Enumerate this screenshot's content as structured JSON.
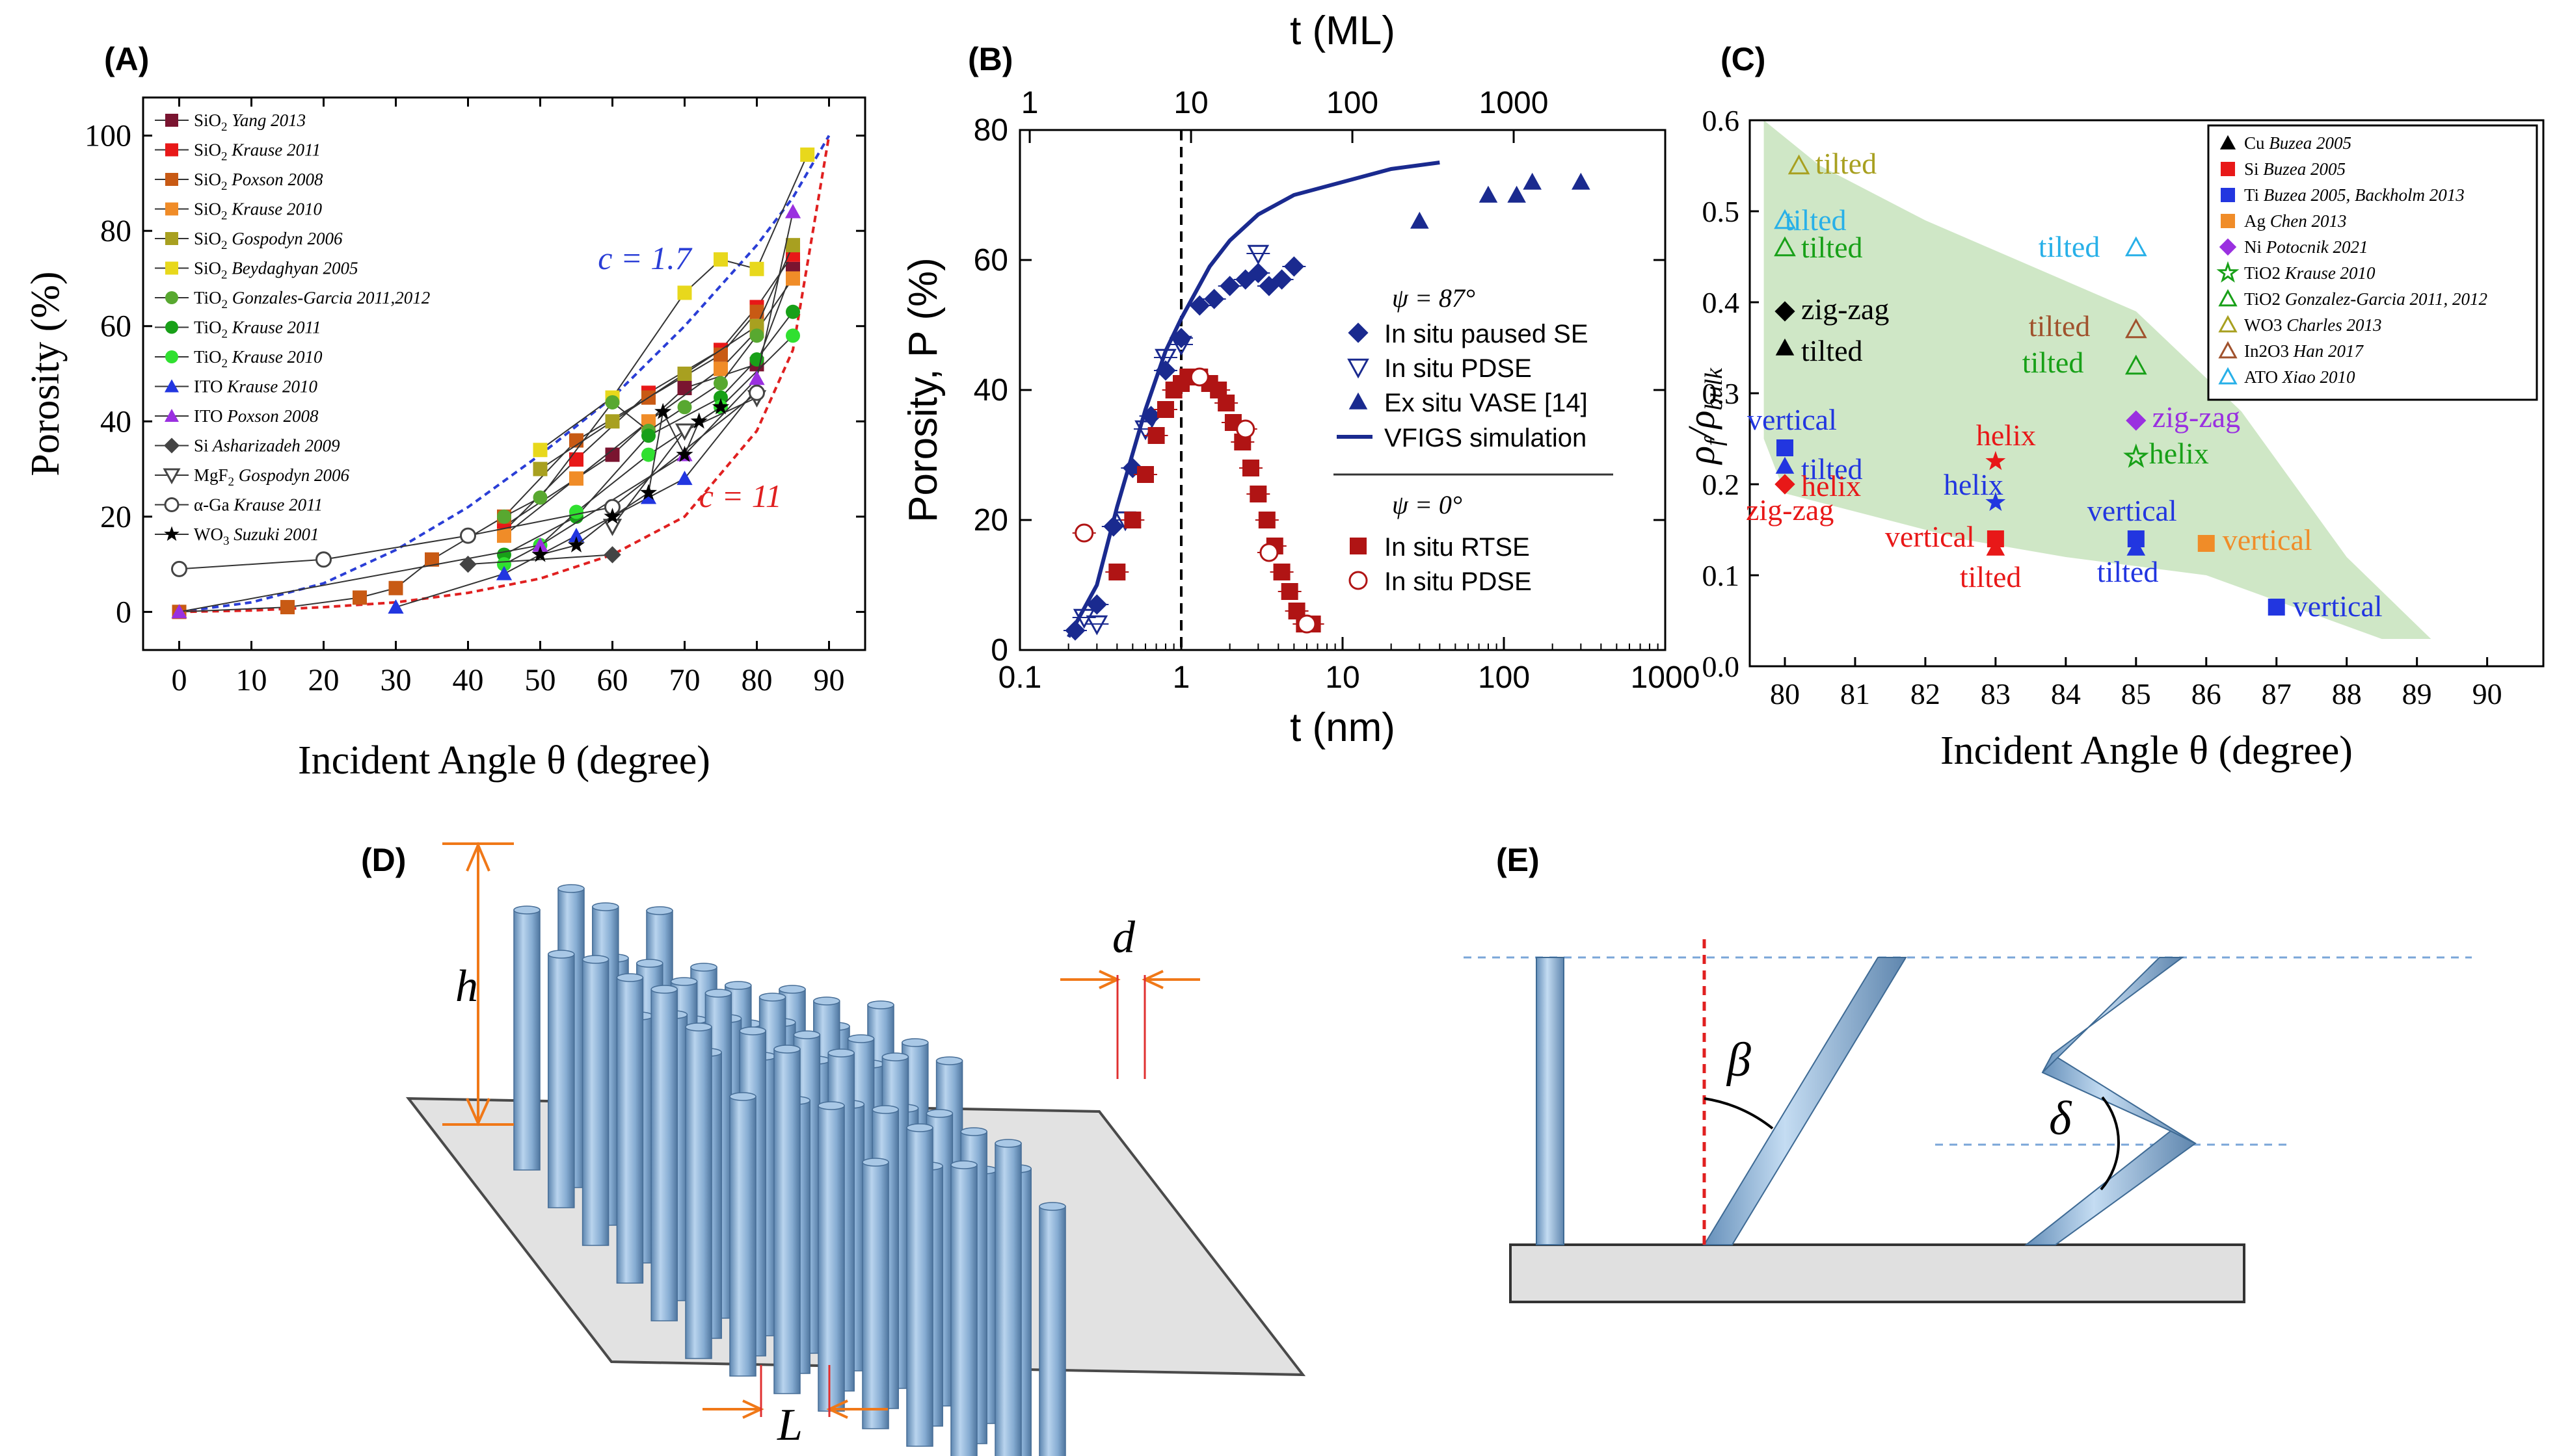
{
  "colors": {
    "green": "#cfe7c6",
    "rod": "#8fb8dc",
    "base": "#e0e0e0",
    "dashblue": "#2a3ed6",
    "dashred": "#e02020",
    "navy": "#1a2a8f",
    "maroon": "#b01414"
  },
  "panels": {
    "A": "(A)",
    "B": "(B)",
    "C": "(C)",
    "D": "(D)",
    "E": "(E)"
  },
  "chart_data": [
    {
      "panel": "A",
      "type": "scatter",
      "xlabel": "Incident Angle θ (degree)",
      "ylabel": "Porosity (%)",
      "xlim": [
        -5,
        95
      ],
      "ylim": [
        -8,
        108
      ],
      "xticks": [
        0,
        10,
        20,
        30,
        40,
        50,
        60,
        70,
        80,
        90
      ],
      "yticks": [
        0,
        20,
        40,
        60,
        80,
        100
      ],
      "curves": [
        {
          "name": "c = 1.7",
          "label": "c = 1.7",
          "color": "#2a3ed6",
          "x": [
            0,
            10,
            20,
            30,
            40,
            50,
            60,
            70,
            80,
            85,
            90
          ],
          "y": [
            0,
            2,
            6,
            13,
            22,
            33,
            45,
            60,
            77,
            87,
            100
          ]
        },
        {
          "name": "c = 11",
          "label": "c = 11",
          "color": "#e02020",
          "x": [
            0,
            10,
            20,
            30,
            40,
            50,
            60,
            70,
            80,
            85,
            90
          ],
          "y": [
            0,
            0.3,
            1,
            2,
            4,
            7,
            12,
            20,
            38,
            55,
            100
          ]
        }
      ],
      "series": [
        {
          "name": "SiO2 Yang 2013",
          "chem": "SiO",
          "sub": "2",
          "ref": "Yang 2013",
          "color": "#7a1430",
          "marker": "square",
          "x": [
            45,
            60,
            70,
            80,
            85
          ],
          "y": [
            18,
            33,
            47,
            52,
            72
          ]
        },
        {
          "name": "SiO2 Krause 2011",
          "chem": "SiO",
          "sub": "2",
          "ref": "Krause 2011",
          "color": "#e81818",
          "marker": "square",
          "x": [
            45,
            55,
            65,
            75,
            80,
            85
          ],
          "y": [
            17,
            32,
            46,
            55,
            64,
            75
          ]
        },
        {
          "name": "SiO2 Poxson 2008",
          "chem": "SiO",
          "sub": "2",
          "ref": "Poxson 2008",
          "color": "#c85a14",
          "marker": "square",
          "x": [
            0,
            15,
            25,
            30,
            35,
            45,
            55,
            65,
            75,
            80
          ],
          "y": [
            0,
            1,
            3,
            5,
            11,
            20,
            36,
            45,
            54,
            63
          ]
        },
        {
          "name": "SiO2 Krause 2010",
          "chem": "SiO",
          "sub": "2",
          "ref": "Krause 2010",
          "color": "#f08c28",
          "marker": "square",
          "x": [
            45,
            55,
            65,
            75,
            80,
            85
          ],
          "y": [
            16,
            28,
            40,
            51,
            59,
            70
          ]
        },
        {
          "name": "SiO2 Gospodyn 2006",
          "chem": "SiO",
          "sub": "2",
          "ref": "Gospodyn 2006",
          "color": "#a8a020",
          "marker": "square",
          "x": [
            50,
            60,
            70,
            80,
            85
          ],
          "y": [
            30,
            40,
            50,
            60,
            77
          ]
        },
        {
          "name": "SiO2 Beydaghyan 2005",
          "chem": "SiO",
          "sub": "2",
          "ref": "Beydaghyan 2005",
          "color": "#e8d81c",
          "marker": "square",
          "x": [
            50,
            60,
            70,
            75,
            80,
            87
          ],
          "y": [
            34,
            45,
            67,
            74,
            72,
            96
          ]
        },
        {
          "name": "TiO2 Gonzales-Garcia 2011,2012",
          "chem": "TiO",
          "sub": "2",
          "ref": "Gonzales-Garcia 2011,2012",
          "color": "#58a830",
          "marker": "circle",
          "x": [
            45,
            50,
            60,
            65,
            70,
            75,
            80
          ],
          "y": [
            20,
            24,
            44,
            38,
            43,
            48,
            58
          ]
        },
        {
          "name": "TiO2 Krause 2011",
          "chem": "TiO",
          "sub": "2",
          "ref": "Krause 2011",
          "color": "#18a018",
          "marker": "circle",
          "x": [
            45,
            55,
            65,
            75,
            80,
            85
          ],
          "y": [
            12,
            20,
            37,
            45,
            53,
            63
          ]
        },
        {
          "name": "TiO2 Krause 2010",
          "chem": "TiO",
          "sub": "2",
          "ref": "Krause 2010",
          "color": "#30e030",
          "marker": "circle",
          "x": [
            45,
            50,
            55,
            65,
            75,
            85
          ],
          "y": [
            10,
            14,
            21,
            33,
            43,
            58
          ]
        },
        {
          "name": "ITO Krause 2010",
          "chem": "ITO",
          "sub": "",
          "ref": "Krause 2010",
          "color": "#2236e0",
          "marker": "triangle",
          "x": [
            30,
            45,
            55,
            65,
            70,
            80
          ],
          "y": [
            1,
            8,
            16,
            24,
            28,
            47
          ]
        },
        {
          "name": "ITO Poxson 2008",
          "chem": "ITO",
          "sub": "",
          "ref": "Poxson 2008",
          "color": "#9a30e0",
          "marker": "triangle",
          "x": [
            0,
            50,
            70,
            80,
            85
          ],
          "y": [
            0,
            14,
            33,
            49,
            84
          ]
        },
        {
          "name": "Si Asharizadeh 2009",
          "chem": "Si",
          "sub": "",
          "ref": "Asharizadeh 2009",
          "color": "#444444",
          "marker": "diamond",
          "x": [
            40,
            60
          ],
          "y": [
            10,
            12
          ]
        },
        {
          "name": "MgF2 Gospodyn 2006",
          "chem": "MgF",
          "sub": "2",
          "ref": "Gospodyn 2006",
          "color": "#444444",
          "marker": "invtriangle",
          "x": [
            60,
            70,
            80
          ],
          "y": [
            18,
            38,
            45
          ]
        },
        {
          "name": "α-Ga Krause 2011",
          "chem": "α-Ga",
          "sub": "",
          "ref": "Krause 2011",
          "color": "#444444",
          "marker": "opencircle",
          "x": [
            0,
            20,
            40,
            60,
            80
          ],
          "y": [
            9,
            11,
            16,
            22,
            46
          ]
        },
        {
          "name": "WO3 Suzuki 2001",
          "chem": "WO",
          "sub": "3",
          "ref": "Suzuki 2001",
          "color": "#000000",
          "marker": "star",
          "x": [
            50,
            55,
            60,
            65,
            67,
            70,
            72,
            75
          ],
          "y": [
            12,
            14,
            20,
            25,
            42,
            33,
            40,
            43
          ]
        }
      ]
    },
    {
      "panel": "B",
      "type": "scatter",
      "xlabel": "t (nm)",
      "ylabel": "Porosity, P (%)",
      "toplabel": "t (ML)",
      "xscale": "log",
      "xlim": [
        0.1,
        1000
      ],
      "ylim": [
        0,
        80
      ],
      "xticks": [
        0.1,
        1,
        10,
        100,
        1000
      ],
      "xticklabels": [
        "0.1",
        "1",
        "10",
        "100",
        "1000"
      ],
      "topticks": [
        1,
        10,
        100,
        1000
      ],
      "toptickpos_nm": [
        0.115,
        1.15,
        11.5,
        115
      ],
      "yticks": [
        0,
        20,
        40,
        60,
        80
      ],
      "dashed_x": 1,
      "legend": {
        "psi87": "ψ = 87°",
        "psi0": "ψ = 0°",
        "items": [
          "In situ paused SE",
          "In situ PDSE",
          "Ex situ VASE [14]",
          "VFIGS simulation",
          "In situ RTSE",
          "In situ PDSE"
        ]
      },
      "series": [
        {
          "name": "In situ paused SE",
          "color": "#1a2a8f",
          "marker": "diamond",
          "x": [
            0.22,
            0.3,
            0.38,
            0.5,
            0.65,
            0.8,
            1.0,
            1.3,
            1.6,
            2.0,
            2.5,
            3.0,
            3.5,
            4.2,
            5.0
          ],
          "y": [
            3,
            7,
            19,
            28,
            36,
            43,
            48,
            53,
            54,
            56,
            57,
            58,
            56,
            57,
            59
          ]
        },
        {
          "name": "In situ PDSE",
          "color": "#1a2a8f",
          "marker": "invtriangle-open",
          "x": [
            0.25,
            0.3,
            0.45,
            0.6,
            0.8,
            1.0,
            3.0
          ],
          "y": [
            5,
            4,
            20,
            34,
            45,
            47,
            61
          ]
        },
        {
          "name": "Ex situ VASE [14]",
          "color": "#1a2a8f",
          "marker": "triangle",
          "x": [
            30,
            80,
            120,
            150,
            300
          ],
          "y": [
            66,
            70,
            70,
            72,
            72
          ]
        },
        {
          "name": "In situ RTSE",
          "color": "#b01414",
          "marker": "square",
          "x": [
            0.4,
            0.5,
            0.6,
            0.7,
            0.8,
            0.9,
            1.0,
            1.1,
            1.2,
            1.3,
            1.5,
            1.7,
            1.9,
            2.1,
            2.4,
            2.7,
            3.0,
            3.4,
            3.8,
            4.2,
            4.7,
            5.2,
            5.8,
            6.5
          ],
          "y": [
            12,
            20,
            27,
            33,
            37,
            40,
            41,
            42,
            42,
            42,
            41,
            40,
            38,
            35,
            32,
            28,
            24,
            20,
            16,
            12,
            9,
            6,
            4,
            4
          ]
        },
        {
          "name": "In situ PDSE (ψ = 0°)",
          "color": "#b01414",
          "marker": "opencircle",
          "x": [
            0.25,
            1.3,
            2.5,
            3.5,
            6.0
          ],
          "y": [
            18,
            42,
            34,
            15,
            4
          ]
        }
      ],
      "curve": {
        "name": "VFIGS simulation",
        "color": "#1a2a8f",
        "x": [
          0.2,
          0.3,
          0.4,
          0.6,
          0.8,
          1.0,
          1.5,
          2,
          3,
          5,
          10,
          20,
          40
        ],
        "y": [
          2,
          10,
          22,
          37,
          46,
          51,
          59,
          63,
          67,
          70,
          72,
          74,
          75
        ]
      }
    },
    {
      "panel": "C",
      "type": "scatter",
      "xlabel": "Incident Angle θ (degree)",
      "ylabel": "ρf/ρbulk",
      "xlim": [
        79.5,
        90.8
      ],
      "ylim": [
        0,
        0.6
      ],
      "xticks": [
        80,
        81,
        82,
        83,
        84,
        85,
        86,
        87,
        88,
        89,
        90
      ],
      "yticks": [
        0.0,
        0.1,
        0.2,
        0.3,
        0.4,
        0.5,
        0.6
      ],
      "legend": [
        {
          "chem": "Cu",
          "ref": "Buzea 2005",
          "color": "#000000",
          "marker": "triangle"
        },
        {
          "chem": "Si",
          "ref": "Buzea 2005",
          "color": "#e81818",
          "marker": "square"
        },
        {
          "chem": "Ti",
          "ref": "Buzea 2005, Backholm 2013",
          "color": "#2236e0",
          "marker": "square"
        },
        {
          "chem": "Ag",
          "ref": "Chen 2013",
          "color": "#f08c28",
          "marker": "square"
        },
        {
          "chem": "Ni",
          "ref": "Potocnik 2021",
          "color": "#9a30e0",
          "marker": "diamond"
        },
        {
          "chem": "TiO2",
          "ref": "Krause 2010",
          "color": "#18a018",
          "marker": "openstar"
        },
        {
          "chem": "TiO2",
          "ref": "Gonzalez-Garcia 2011, 2012",
          "color": "#18a018",
          "marker": "opentriangle"
        },
        {
          "chem": "WO3",
          "ref": "Charles 2013",
          "color": "#a8a020",
          "marker": "opentriangle"
        },
        {
          "chem": "In2O3",
          "ref": "Han 2017",
          "color": "#a0522d",
          "marker": "opentriangle"
        },
        {
          "chem": "ATO",
          "ref": "Xiao 2010",
          "color": "#28b0e8",
          "marker": "opentriangle"
        }
      ],
      "points": [
        {
          "x": 80.2,
          "y": 0.55,
          "color": "#a8a020",
          "marker": "opentriangle",
          "label": "tilted"
        },
        {
          "x": 80.0,
          "y": 0.49,
          "color": "#28b0e8",
          "marker": "opentriangle",
          "label": "tilted"
        },
        {
          "x": 80.0,
          "y": 0.46,
          "color": "#18a018",
          "marker": "opentriangle",
          "label": "tilted"
        },
        {
          "x": 80.0,
          "y": 0.39,
          "color": "#000000",
          "marker": "diamond",
          "label": "zig-zag"
        },
        {
          "x": 80.0,
          "y": 0.35,
          "color": "#000000",
          "marker": "triangle",
          "label": "tilted"
        },
        {
          "x": 80.0,
          "y": 0.24,
          "color": "#2236e0",
          "marker": "square",
          "label": "vertical"
        },
        {
          "x": 80.0,
          "y": 0.22,
          "color": "#2236e0",
          "marker": "triangle",
          "label": "tilted"
        },
        {
          "x": 80.0,
          "y": 0.2,
          "color": "#e81818",
          "marker": "diamond",
          "label": "helix"
        },
        {
          "x": 80.0,
          "y": 0.2,
          "color": "#e81818",
          "marker": "diamond",
          "label": "zig-zag"
        },
        {
          "x": 83.0,
          "y": 0.225,
          "color": "#e81818",
          "marker": "star",
          "label": "helix"
        },
        {
          "x": 83.0,
          "y": 0.18,
          "color": "#2236e0",
          "marker": "star",
          "label": "helix"
        },
        {
          "x": 83.0,
          "y": 0.14,
          "color": "#e81818",
          "marker": "square",
          "label": "vertical"
        },
        {
          "x": 83.0,
          "y": 0.13,
          "color": "#e81818",
          "marker": "triangle",
          "label": "tilted"
        },
        {
          "x": 85.0,
          "y": 0.46,
          "color": "#28b0e8",
          "marker": "opentriangle",
          "label": "tilted"
        },
        {
          "x": 85.0,
          "y": 0.37,
          "color": "#a0522d",
          "marker": "opentriangle",
          "label": "tilted"
        },
        {
          "x": 85.0,
          "y": 0.33,
          "color": "#18a018",
          "marker": "opentriangle",
          "label": "tilted"
        },
        {
          "x": 85.0,
          "y": 0.27,
          "color": "#9a30e0",
          "marker": "diamond",
          "label": "zig-zag"
        },
        {
          "x": 85.0,
          "y": 0.23,
          "color": "#18a018",
          "marker": "openstar",
          "label": "helix"
        },
        {
          "x": 85.0,
          "y": 0.14,
          "color": "#2236e0",
          "marker": "square",
          "label": "vertical"
        },
        {
          "x": 85.0,
          "y": 0.13,
          "color": "#2236e0",
          "marker": "triangle",
          "label": "tilted"
        },
        {
          "x": 86.0,
          "y": 0.135,
          "color": "#f08c28",
          "marker": "square",
          "label": "vertical"
        },
        {
          "x": 87.0,
          "y": 0.065,
          "color": "#2236e0",
          "marker": "square",
          "label": "vertical"
        }
      ]
    }
  ],
  "panelD": {
    "h": "h",
    "d": "d",
    "L": "L"
  },
  "panelE": {
    "beta": "β",
    "delta": "δ"
  }
}
